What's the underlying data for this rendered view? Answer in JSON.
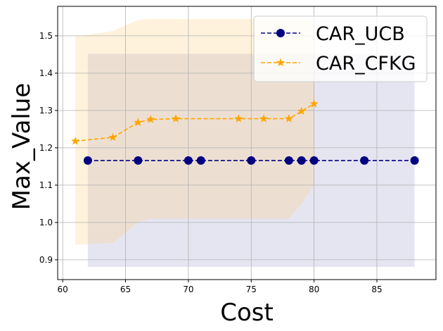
{
  "chart_data": {
    "type": "line",
    "title": "",
    "xlabel": "Cost",
    "ylabel": "Max_Value",
    "xlim": [
      59.6,
      89.7
    ],
    "ylim": [
      0.847,
      1.579
    ],
    "xticks": [
      60,
      65,
      70,
      75,
      80,
      85
    ],
    "yticks": [
      0.9,
      1.0,
      1.1,
      1.2,
      1.3,
      1.4,
      1.5
    ],
    "grid": true,
    "legend_position": "top-right",
    "series": [
      {
        "name": "CAR_UCB",
        "color": "#000080",
        "line_style": "dashed",
        "marker": "circle",
        "x": [
          62,
          66,
          70,
          71,
          75,
          78,
          79,
          80,
          84,
          88
        ],
        "y": [
          1.166,
          1.166,
          1.166,
          1.166,
          1.166,
          1.166,
          1.166,
          1.166,
          1.166,
          1.166
        ],
        "band": {
          "color": "#9999cc",
          "x": [
            62,
            88
          ],
          "upper": [
            1.452,
            1.452
          ],
          "lower": [
            0.881,
            0.881
          ]
        }
      },
      {
        "name": "CAR_CFKG",
        "color": "#ffa500",
        "line_style": "dashed",
        "marker": "star",
        "x": [
          61,
          64,
          66,
          67,
          69,
          74,
          76,
          78,
          79,
          80
        ],
        "y": [
          1.218,
          1.228,
          1.268,
          1.276,
          1.278,
          1.278,
          1.278,
          1.278,
          1.298,
          1.318
        ],
        "band": {
          "color": "#ffd080",
          "x": [
            61,
            64,
            66,
            67,
            69,
            74,
            76,
            78,
            79,
            80
          ],
          "upper": [
            1.498,
            1.513,
            1.543,
            1.545,
            1.545,
            1.545,
            1.545,
            1.545,
            1.545,
            1.545
          ],
          "lower": [
            0.94,
            0.945,
            1.0,
            1.01,
            1.01,
            1.01,
            1.01,
            1.01,
            1.05,
            1.1
          ]
        }
      }
    ]
  }
}
